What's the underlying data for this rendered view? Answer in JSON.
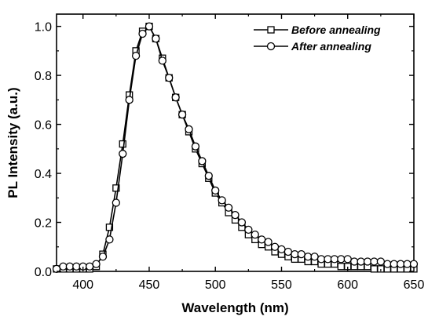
{
  "chart_data": {
    "type": "line",
    "xlabel": "Wavelength (nm)",
    "ylabel": "PL Intensity (a.u.)",
    "xlim": [
      380,
      650
    ],
    "ylim": [
      0.0,
      1.05
    ],
    "x_ticks": [
      400,
      450,
      500,
      550,
      600,
      650
    ],
    "y_ticks": [
      0.0,
      0.2,
      0.4,
      0.6,
      0.8,
      1.0
    ],
    "x_tick_labels": [
      "400",
      "450",
      "500",
      "550",
      "600",
      "650"
    ],
    "y_tick_labels": [
      "0.0",
      "0.2",
      "0.4",
      "0.6",
      "0.8",
      "1.0"
    ],
    "grid": false,
    "legend_position": "top-right",
    "series": [
      {
        "name": "Before annealing",
        "marker": "square",
        "color": "#000000",
        "x": [
          380,
          385,
          390,
          395,
          400,
          405,
          410,
          415,
          420,
          425,
          430,
          435,
          440,
          445,
          450,
          455,
          460,
          465,
          470,
          475,
          480,
          485,
          490,
          495,
          500,
          505,
          510,
          515,
          520,
          525,
          530,
          535,
          540,
          545,
          550,
          555,
          560,
          565,
          570,
          575,
          580,
          585,
          590,
          595,
          600,
          605,
          610,
          615,
          620,
          625,
          630,
          635,
          640,
          645,
          650
        ],
        "values": [
          0.01,
          0.01,
          0.01,
          0.01,
          0.01,
          0.01,
          0.02,
          0.07,
          0.18,
          0.34,
          0.52,
          0.72,
          0.9,
          0.98,
          1.0,
          0.95,
          0.87,
          0.79,
          0.71,
          0.64,
          0.57,
          0.5,
          0.44,
          0.38,
          0.32,
          0.28,
          0.24,
          0.21,
          0.18,
          0.15,
          0.13,
          0.11,
          0.1,
          0.08,
          0.07,
          0.06,
          0.05,
          0.05,
          0.04,
          0.04,
          0.03,
          0.03,
          0.03,
          0.02,
          0.02,
          0.02,
          0.02,
          0.02,
          0.01,
          0.01,
          0.01,
          0.01,
          0.01,
          0.01,
          0.01
        ]
      },
      {
        "name": "After annealing",
        "marker": "circle",
        "color": "#000000",
        "x": [
          380,
          385,
          390,
          395,
          400,
          405,
          410,
          415,
          420,
          425,
          430,
          435,
          440,
          445,
          450,
          455,
          460,
          465,
          470,
          475,
          480,
          485,
          490,
          495,
          500,
          505,
          510,
          515,
          520,
          525,
          530,
          535,
          540,
          545,
          550,
          555,
          560,
          565,
          570,
          575,
          580,
          585,
          590,
          595,
          600,
          605,
          610,
          615,
          620,
          625,
          630,
          635,
          640,
          645,
          650
        ],
        "values": [
          0.01,
          0.02,
          0.02,
          0.02,
          0.02,
          0.02,
          0.03,
          0.06,
          0.13,
          0.28,
          0.48,
          0.7,
          0.88,
          0.97,
          1.0,
          0.95,
          0.86,
          0.79,
          0.71,
          0.64,
          0.58,
          0.51,
          0.45,
          0.39,
          0.33,
          0.29,
          0.26,
          0.23,
          0.2,
          0.17,
          0.15,
          0.13,
          0.12,
          0.1,
          0.09,
          0.08,
          0.07,
          0.07,
          0.06,
          0.06,
          0.05,
          0.05,
          0.05,
          0.05,
          0.05,
          0.04,
          0.04,
          0.04,
          0.04,
          0.04,
          0.03,
          0.03,
          0.03,
          0.03,
          0.03
        ]
      }
    ]
  }
}
